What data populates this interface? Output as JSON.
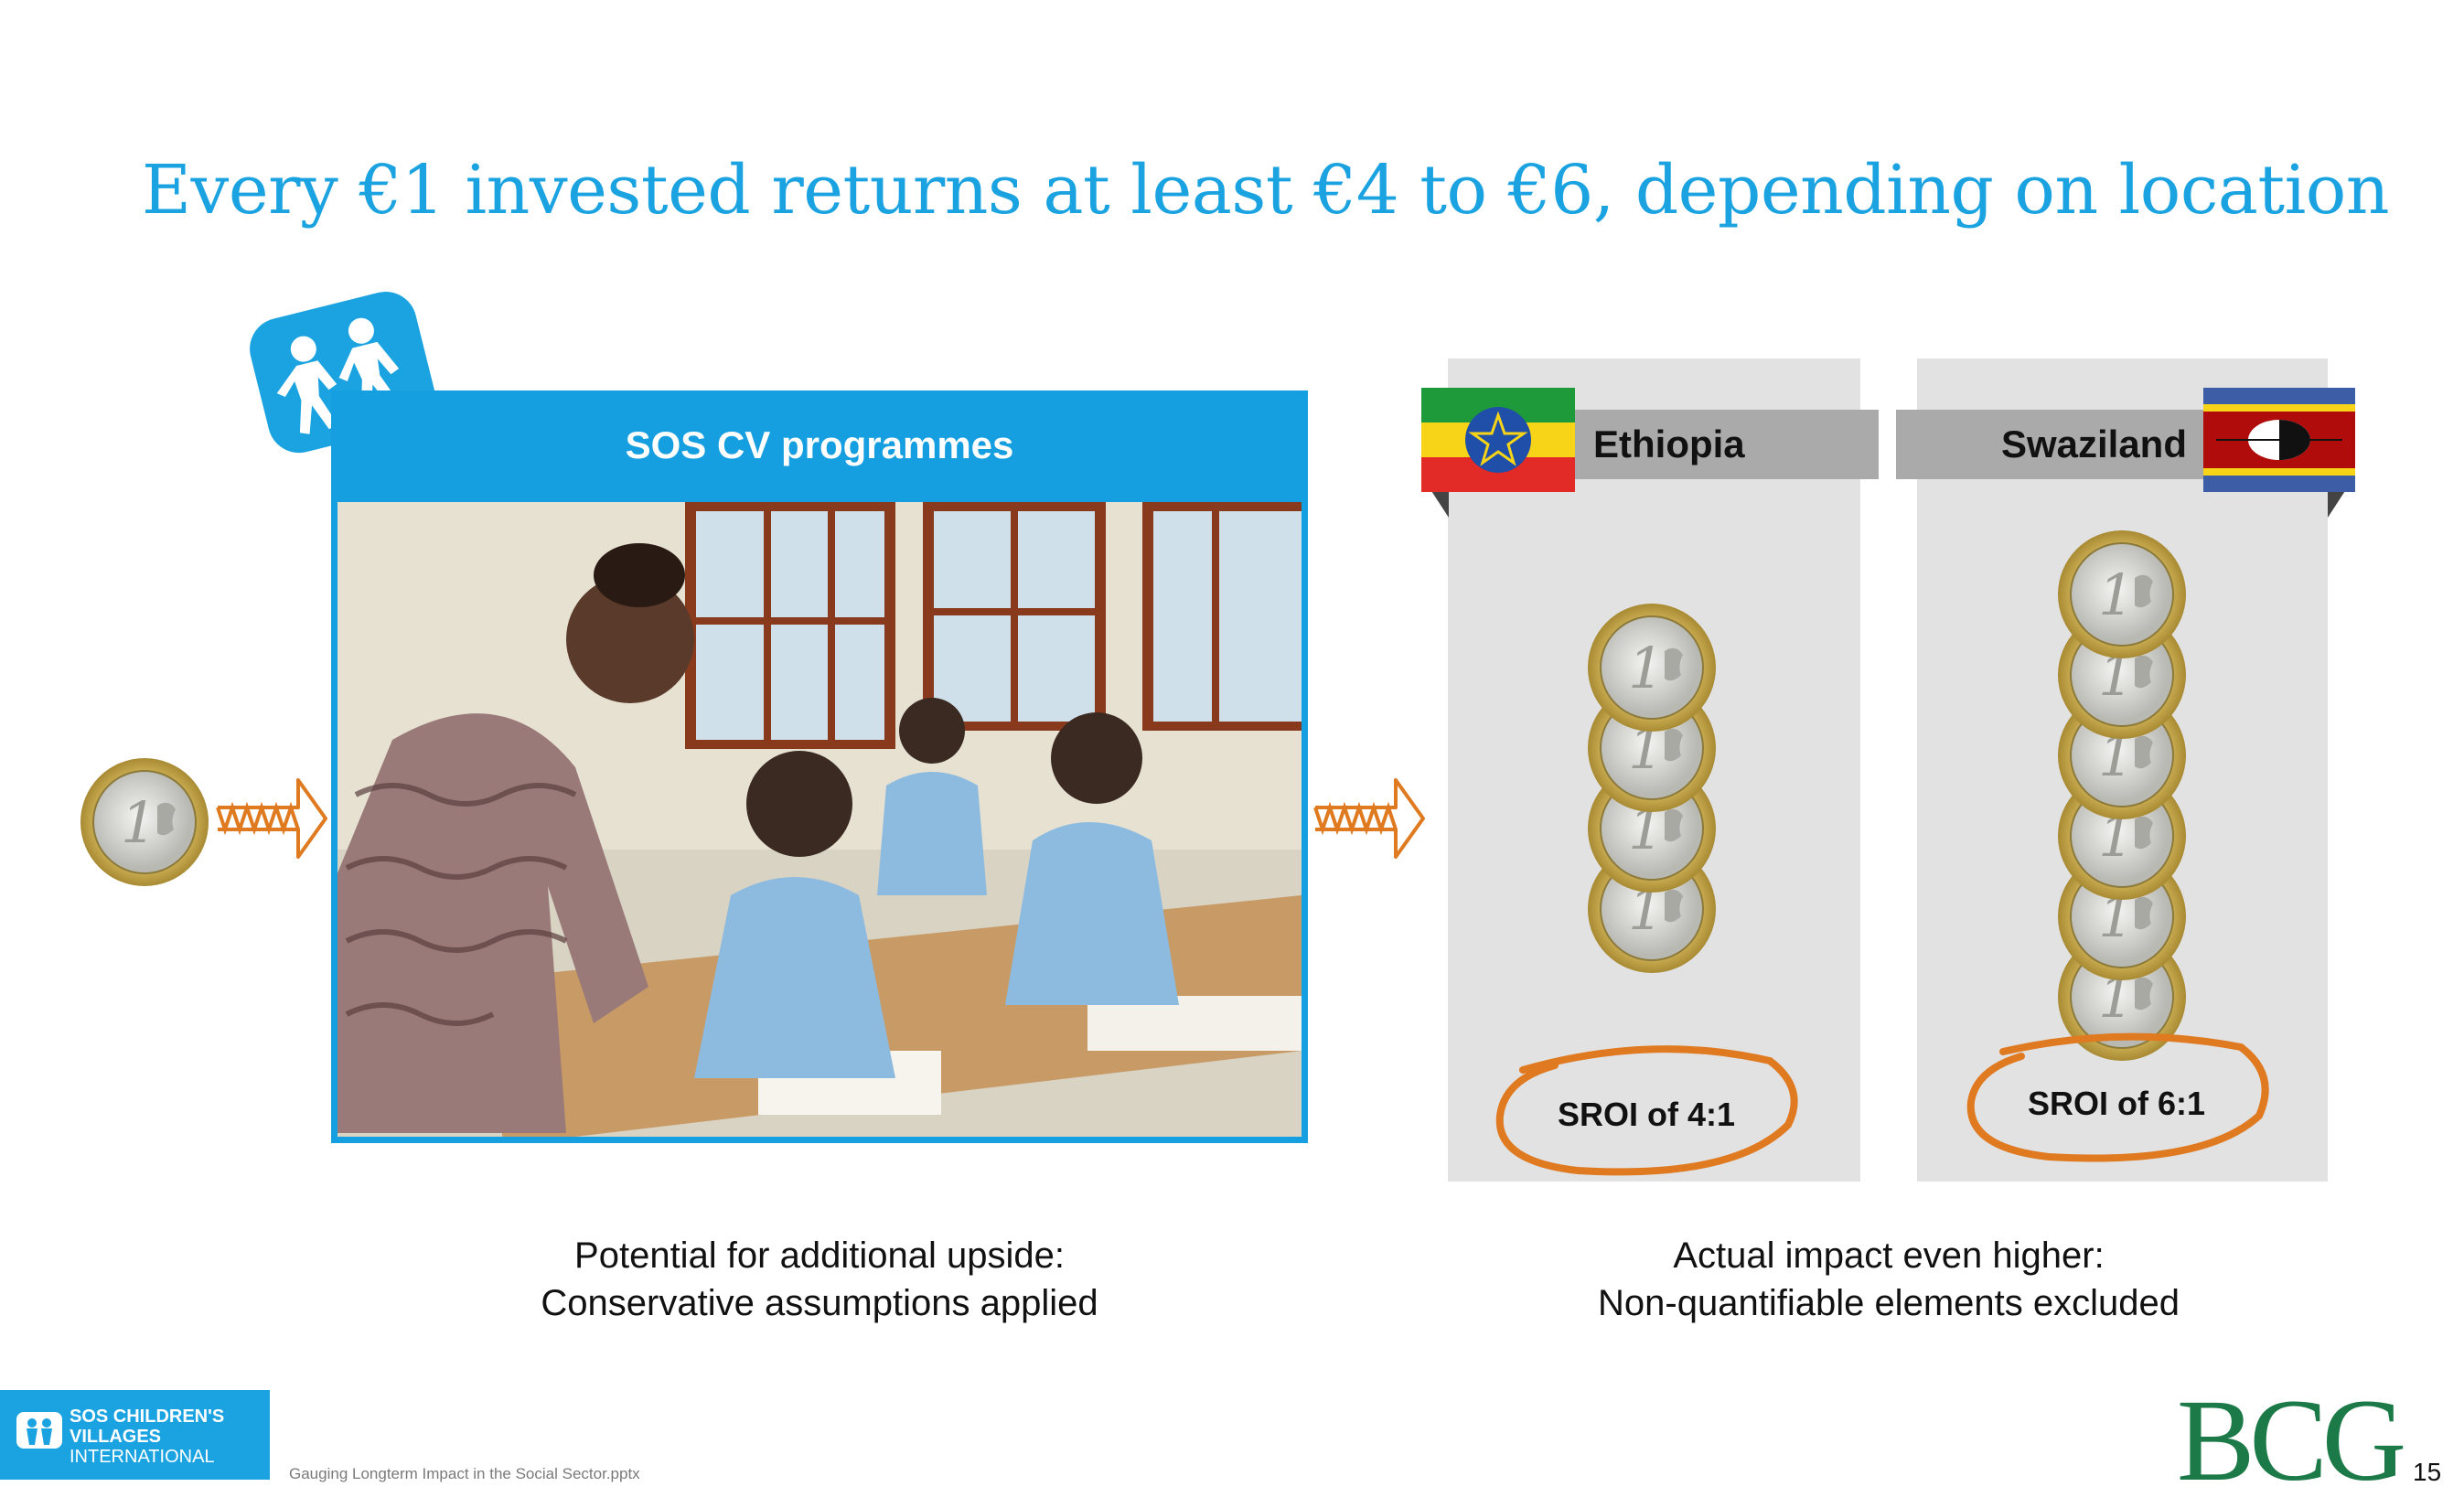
{
  "slide": {
    "title": "Every €1 invested returns at least €4 to €6, depending on location",
    "page_number": "15",
    "footer_file": "Gauging Longterm Impact in the Social Sector.pptx"
  },
  "programme": {
    "heading": "SOS CV programmes",
    "caption_line1": "Potential for additional upside:",
    "caption_line2": "Conservative assumptions applied"
  },
  "locations": [
    {
      "country": "Ethiopia",
      "sroi": "SROI of 4:1",
      "coins": 4
    },
    {
      "country": "Swaziland",
      "sroi": "SROI of 6:1",
      "coins": 6
    }
  ],
  "impact": {
    "caption_line1": "Actual impact even higher:",
    "caption_line2": "Non-quantifiable elements excluded"
  },
  "logos": {
    "sos_line1": "SOS CHILDREN'S",
    "sos_line2": "VILLAGES",
    "sos_line3": "INTERNATIONAL",
    "bcg": "BCG"
  },
  "colors": {
    "accent_blue": "#1aa3e0",
    "arrow_orange": "#e07a20",
    "bcg_green": "#1b7a47"
  }
}
